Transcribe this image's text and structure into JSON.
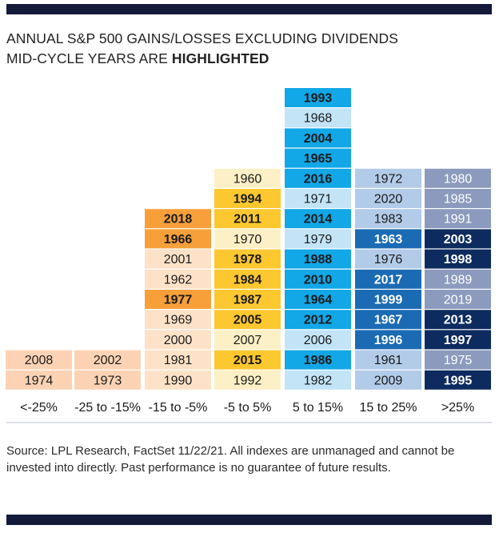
{
  "title": {
    "line1": "ANNUAL S&P 500 GAINS/LOSSES EXCLUDING DIVIDENDS",
    "line2_prefix": "MID-CYCLE YEARS ARE ",
    "line2_highlight": "HIGHLIGHTED"
  },
  "source": "Source: LPL Research, FactSet  11/22/21. All indexes are unmanaged and cannot be invested into directly.  Past performance is no guarantee of future results.",
  "chart_data": {
    "type": "table",
    "categories": [
      "<-25%",
      "-25 to -15%",
      "-15 to -5%",
      "-5 to 5%",
      "5 to 15%",
      "15 to 25%",
      ">25%"
    ],
    "columns": [
      {
        "category": "<-25%",
        "light_color": "#fbd3b4",
        "highlight_color": "#f7a03a",
        "years": [
          {
            "year": "2008",
            "highlighted": false
          },
          {
            "year": "1974",
            "highlighted": false
          }
        ]
      },
      {
        "category": "-25 to -15%",
        "light_color": "#fbd3b4",
        "highlight_color": "#f7a03a",
        "years": [
          {
            "year": "2002",
            "highlighted": false
          },
          {
            "year": "1973",
            "highlighted": false
          }
        ]
      },
      {
        "category": "-15 to -5%",
        "light_color": "#fde2c8",
        "highlight_color": "#f7a03a",
        "years": [
          {
            "year": "2018",
            "highlighted": true
          },
          {
            "year": "1966",
            "highlighted": true
          },
          {
            "year": "2001",
            "highlighted": false
          },
          {
            "year": "1962",
            "highlighted": false
          },
          {
            "year": "1977",
            "highlighted": true
          },
          {
            "year": "1969",
            "highlighted": false
          },
          {
            "year": "2000",
            "highlighted": false
          },
          {
            "year": "1981",
            "highlighted": false
          },
          {
            "year": "1990",
            "highlighted": false
          }
        ]
      },
      {
        "category": "-5 to 5%",
        "light_color": "#fdf0c6",
        "highlight_color": "#fdc82f",
        "years": [
          {
            "year": "1960",
            "highlighted": false
          },
          {
            "year": "1994",
            "highlighted": true
          },
          {
            "year": "2011",
            "highlighted": true
          },
          {
            "year": "1970",
            "highlighted": false
          },
          {
            "year": "1978",
            "highlighted": true
          },
          {
            "year": "1984",
            "highlighted": true
          },
          {
            "year": "1987",
            "highlighted": true
          },
          {
            "year": "2005",
            "highlighted": true
          },
          {
            "year": "2007",
            "highlighted": false
          },
          {
            "year": "2015",
            "highlighted": true
          },
          {
            "year": "1992",
            "highlighted": false
          }
        ]
      },
      {
        "category": "5 to 15%",
        "light_color": "#c3e4f7",
        "highlight_color": "#12a7e6",
        "years": [
          {
            "year": "1993",
            "highlighted": true
          },
          {
            "year": "1968",
            "highlighted": false
          },
          {
            "year": "2004",
            "highlighted": true
          },
          {
            "year": "1965",
            "highlighted": true
          },
          {
            "year": "2016",
            "highlighted": true
          },
          {
            "year": "1971",
            "highlighted": false
          },
          {
            "year": "2014",
            "highlighted": true
          },
          {
            "year": "1979",
            "highlighted": false
          },
          {
            "year": "1988",
            "highlighted": true
          },
          {
            "year": "2010",
            "highlighted": true
          },
          {
            "year": "1964",
            "highlighted": true
          },
          {
            "year": "2012",
            "highlighted": true
          },
          {
            "year": "2006",
            "highlighted": false
          },
          {
            "year": "1986",
            "highlighted": true
          },
          {
            "year": "1982",
            "highlighted": false
          }
        ]
      },
      {
        "category": "15 to 25%",
        "light_color": "#b2cbe8",
        "highlight_color": "#1b6bb4",
        "years": [
          {
            "year": "1972",
            "highlighted": false
          },
          {
            "year": "2020",
            "highlighted": false
          },
          {
            "year": "1983",
            "highlighted": false
          },
          {
            "year": "1963",
            "highlighted": true
          },
          {
            "year": "1976",
            "highlighted": false
          },
          {
            "year": "2017",
            "highlighted": true
          },
          {
            "year": "1999",
            "highlighted": true
          },
          {
            "year": "1967",
            "highlighted": true
          },
          {
            "year": "1996",
            "highlighted": true
          },
          {
            "year": "1961",
            "highlighted": false
          },
          {
            "year": "2009",
            "highlighted": false
          }
        ]
      },
      {
        "category": ">25%",
        "light_color": "#8c9bbd",
        "highlight_color": "#0d2b5e",
        "years": [
          {
            "year": "1980",
            "highlighted": false
          },
          {
            "year": "1985",
            "highlighted": false
          },
          {
            "year": "1991",
            "highlighted": false
          },
          {
            "year": "2003",
            "highlighted": true
          },
          {
            "year": "1998",
            "highlighted": true
          },
          {
            "year": "1989",
            "highlighted": false
          },
          {
            "year": "2019",
            "highlighted": false
          },
          {
            "year": "2013",
            "highlighted": true
          },
          {
            "year": "1997",
            "highlighted": true
          },
          {
            "year": "1975",
            "highlighted": false
          },
          {
            "year": "1995",
            "highlighted": true
          }
        ]
      }
    ],
    "text_colors": {
      "dark": "#1a1a1a",
      "light": "#ffffff"
    }
  }
}
